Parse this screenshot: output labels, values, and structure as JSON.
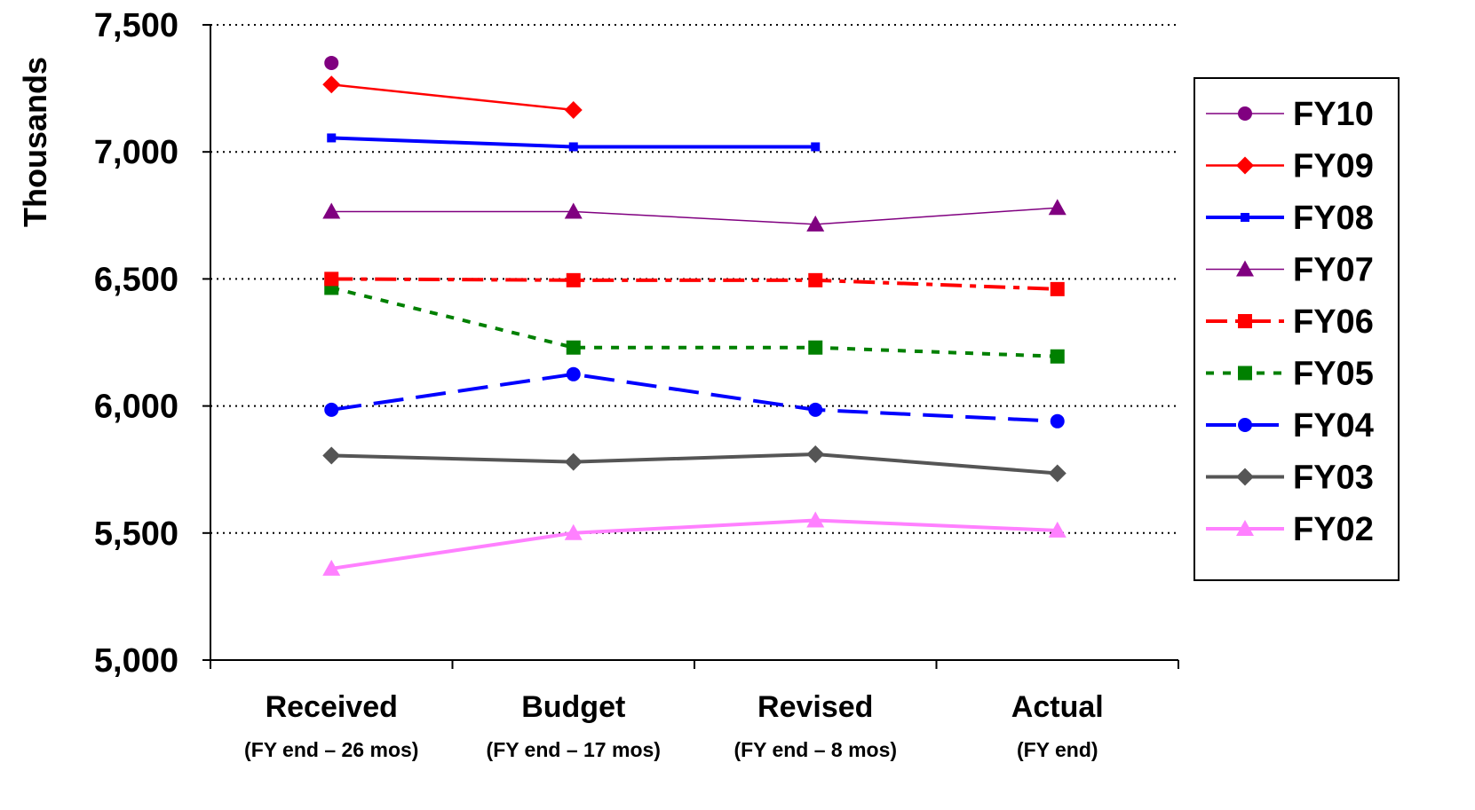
{
  "chart_data": {
    "type": "line",
    "ylabel": "Thousands",
    "ylim": [
      5000,
      7500
    ],
    "yticks": [
      "5,000",
      "5,500",
      "6,000",
      "6,500",
      "7,000",
      "7,500"
    ],
    "ytick_values": [
      5000,
      5500,
      6000,
      6500,
      7000,
      7500
    ],
    "grid": "horizontal-dotted",
    "legend_position": "right",
    "categories": [
      {
        "label": "Received",
        "sublabel": "(FY end – 26 mos)"
      },
      {
        "label": "Budget",
        "sublabel": "(FY end – 17 mos)"
      },
      {
        "label": "Revised",
        "sublabel": "(FY end – 8 mos)"
      },
      {
        "label": "Actual",
        "sublabel": "(FY end)"
      }
    ],
    "series": [
      {
        "name": "FY10",
        "values": [
          7350,
          null,
          null,
          null
        ],
        "color": "#800080",
        "marker": "circle",
        "dash": "solid",
        "weight": "thin"
      },
      {
        "name": "FY09",
        "values": [
          7265,
          7165,
          null,
          null
        ],
        "color": "#ff0000",
        "marker": "diamond",
        "dash": "solid",
        "weight": "medium"
      },
      {
        "name": "FY08",
        "values": [
          7055,
          7020,
          7020,
          null
        ],
        "color": "#0000ff",
        "marker": "square-small",
        "dash": "solid",
        "weight": "thick"
      },
      {
        "name": "FY07",
        "values": [
          6765,
          6765,
          6715,
          6780
        ],
        "color": "#800080",
        "marker": "triangle",
        "dash": "solid",
        "weight": "thin"
      },
      {
        "name": "FY06",
        "values": [
          6500,
          6495,
          6495,
          6460
        ],
        "color": "#ff0000",
        "marker": "square",
        "dash": "dash-dot",
        "weight": "thick"
      },
      {
        "name": "FY05",
        "values": [
          6465,
          6230,
          6230,
          6195
        ],
        "color": "#008000",
        "marker": "square",
        "dash": "dotted",
        "weight": "thick"
      },
      {
        "name": "FY04",
        "values": [
          5985,
          6125,
          5985,
          5940
        ],
        "color": "#0000ff",
        "marker": "circle",
        "dash": "long-dash",
        "weight": "thick"
      },
      {
        "name": "FY03",
        "values": [
          5805,
          5780,
          5810,
          5735
        ],
        "color": "#555555",
        "marker": "diamond",
        "dash": "solid",
        "weight": "thick"
      },
      {
        "name": "FY02",
        "values": [
          5360,
          5500,
          5550,
          5510
        ],
        "color": "#ff80ff",
        "marker": "triangle",
        "dash": "solid",
        "weight": "thick"
      }
    ]
  }
}
